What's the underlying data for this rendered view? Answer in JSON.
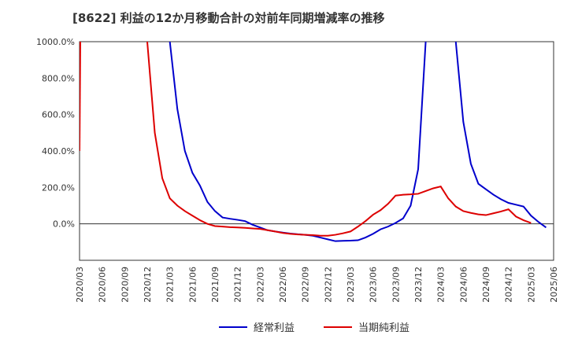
{
  "chart_data": {
    "type": "line",
    "title": "[8622]  利益の12か月移動合計の対前年同期増減率の推移",
    "xlabel": "",
    "ylabel": "",
    "ylim": [
      -200,
      1000
    ],
    "yticks": [
      0,
      200,
      400,
      600,
      800,
      1000
    ],
    "ytick_labels": [
      "0.0%",
      "200.0%",
      "400.0%",
      "600.0%",
      "800.0%",
      "1000.0%"
    ],
    "x_start": "2020/03",
    "x_end": "2025/06",
    "xtick_labels": [
      "2020/03",
      "2020/06",
      "2020/09",
      "2020/12",
      "2021/03",
      "2021/06",
      "2021/09",
      "2021/12",
      "2022/03",
      "2022/06",
      "2022/09",
      "2022/12",
      "2023/03",
      "2023/06",
      "2023/09",
      "2023/12",
      "2024/03",
      "2024/06",
      "2024/09",
      "2024/12",
      "2025/03",
      "2025/06"
    ],
    "grid": true,
    "legend": "bottom",
    "series": [
      {
        "name": "経常利益",
        "color": "#0000cc",
        "points": [
          {
            "m": 12,
            "v": 1000
          },
          {
            "m": 13,
            "v": 630
          },
          {
            "m": 14,
            "v": 400
          },
          {
            "m": 15,
            "v": 280
          },
          {
            "m": 16,
            "v": 210
          },
          {
            "m": 17,
            "v": 120
          },
          {
            "m": 18,
            "v": 70
          },
          {
            "m": 19,
            "v": 35
          },
          {
            "m": 20,
            "v": 28
          },
          {
            "m": 21,
            "v": 22
          },
          {
            "m": 22,
            "v": 15
          },
          {
            "m": 23,
            "v": -5
          },
          {
            "m": 24,
            "v": -20
          },
          {
            "m": 25,
            "v": -35
          },
          {
            "m": 26,
            "v": -42
          },
          {
            "m": 27,
            "v": -48
          },
          {
            "m": 28,
            "v": -53
          },
          {
            "m": 29,
            "v": -57
          },
          {
            "m": 30,
            "v": -60
          },
          {
            "m": 31,
            "v": -65
          },
          {
            "m": 32,
            "v": -75
          },
          {
            "m": 33,
            "v": -85
          },
          {
            "m": 34,
            "v": -95
          },
          {
            "m": 35,
            "v": -93
          },
          {
            "m": 36,
            "v": -92
          },
          {
            "m": 37,
            "v": -90
          },
          {
            "m": 38,
            "v": -75
          },
          {
            "m": 39,
            "v": -55
          },
          {
            "m": 40,
            "v": -30
          },
          {
            "m": 41,
            "v": -15
          },
          {
            "m": 42,
            "v": 5
          },
          {
            "m": 43,
            "v": 30
          },
          {
            "m": 44,
            "v": 100
          },
          {
            "m": 45,
            "v": 300
          },
          {
            "m": 46,
            "v": 1000
          }
        ],
        "segments_after_break": [
          {
            "m": 50,
            "v": 1000
          },
          {
            "m": 51,
            "v": 560
          },
          {
            "m": 52,
            "v": 330
          },
          {
            "m": 53,
            "v": 220
          },
          {
            "m": 54,
            "v": 190
          },
          {
            "m": 55,
            "v": 160
          },
          {
            "m": 56,
            "v": 135
          },
          {
            "m": 57,
            "v": 115
          },
          {
            "m": 58,
            "v": 105
          },
          {
            "m": 59,
            "v": 95
          },
          {
            "m": 60,
            "v": 45
          },
          {
            "m": 61,
            "v": 10
          },
          {
            "m": 62,
            "v": -20
          }
        ]
      },
      {
        "name": "当期純利益",
        "color": "#dd0000",
        "points_start": [
          {
            "m": 0,
            "v": 400
          },
          {
            "m": 0.1,
            "v": 1000
          }
        ],
        "points": [
          {
            "m": 9,
            "v": 1000
          },
          {
            "m": 10,
            "v": 500
          },
          {
            "m": 11,
            "v": 250
          },
          {
            "m": 12,
            "v": 140
          },
          {
            "m": 13,
            "v": 100
          },
          {
            "m": 14,
            "v": 70
          },
          {
            "m": 15,
            "v": 45
          },
          {
            "m": 16,
            "v": 20
          },
          {
            "m": 17,
            "v": 0
          },
          {
            "m": 18,
            "v": -12
          },
          {
            "m": 19,
            "v": -15
          },
          {
            "m": 20,
            "v": -18
          },
          {
            "m": 21,
            "v": -20
          },
          {
            "m": 22,
            "v": -22
          },
          {
            "m": 23,
            "v": -25
          },
          {
            "m": 24,
            "v": -28
          },
          {
            "m": 25,
            "v": -35
          },
          {
            "m": 26,
            "v": -42
          },
          {
            "m": 27,
            "v": -50
          },
          {
            "m": 28,
            "v": -55
          },
          {
            "m": 29,
            "v": -58
          },
          {
            "m": 30,
            "v": -60
          },
          {
            "m": 31,
            "v": -62
          },
          {
            "m": 32,
            "v": -65
          },
          {
            "m": 33,
            "v": -65
          },
          {
            "m": 34,
            "v": -60
          },
          {
            "m": 35,
            "v": -52
          },
          {
            "m": 36,
            "v": -42
          },
          {
            "m": 37,
            "v": -15
          },
          {
            "m": 38,
            "v": 15
          },
          {
            "m": 39,
            "v": 50
          },
          {
            "m": 40,
            "v": 75
          },
          {
            "m": 41,
            "v": 110
          },
          {
            "m": 42,
            "v": 155
          },
          {
            "m": 43,
            "v": 160
          },
          {
            "m": 44,
            "v": 162
          },
          {
            "m": 45,
            "v": 165
          },
          {
            "m": 46,
            "v": 180
          },
          {
            "m": 47,
            "v": 195
          },
          {
            "m": 48,
            "v": 205
          },
          {
            "m": 49,
            "v": 140
          },
          {
            "m": 50,
            "v": 95
          },
          {
            "m": 51,
            "v": 70
          },
          {
            "m": 52,
            "v": 60
          },
          {
            "m": 53,
            "v": 52
          },
          {
            "m": 54,
            "v": 48
          },
          {
            "m": 55,
            "v": 58
          },
          {
            "m": 56,
            "v": 68
          },
          {
            "m": 57,
            "v": 80
          },
          {
            "m": 58,
            "v": 40
          },
          {
            "m": 59,
            "v": 20
          },
          {
            "m": 60,
            "v": 5
          }
        ]
      }
    ]
  }
}
